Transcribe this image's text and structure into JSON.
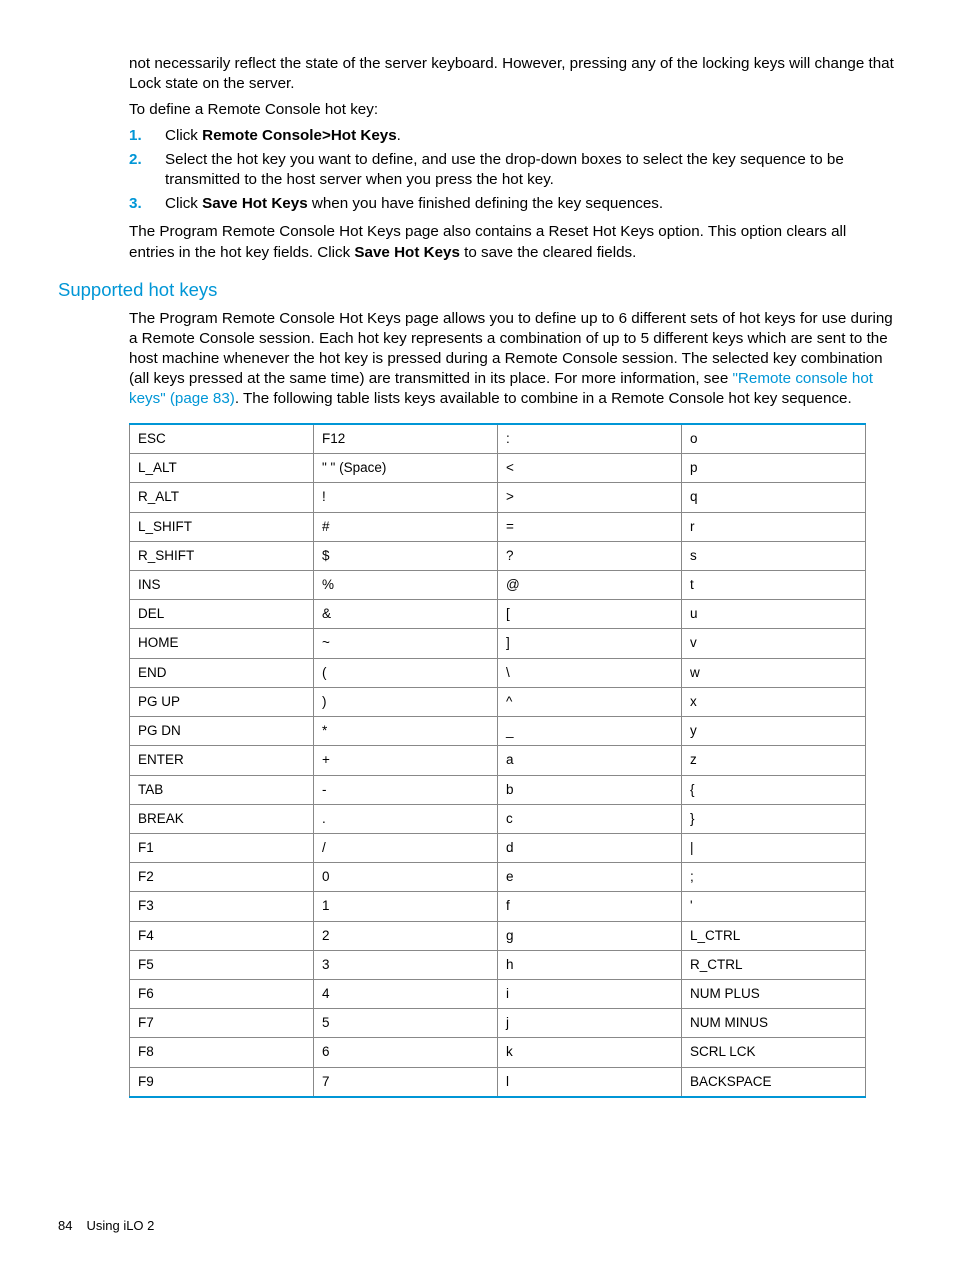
{
  "intro": {
    "p1": "not necessarily reflect the state of the server keyboard. However, pressing any of the locking keys will change that Lock state on the server.",
    "p2": "To define a Remote Console hot key:"
  },
  "steps": {
    "s1": {
      "num": "1.",
      "pre": "Click ",
      "bold": "Remote Console>Hot Keys",
      "post": "."
    },
    "s2": {
      "num": "2.",
      "text": "Select the hot key you want to define, and use the drop-down boxes to select the key sequence to be transmitted to the host server when you press the hot key."
    },
    "s3": {
      "num": "3.",
      "pre": "Click ",
      "bold": "Save Hot Keys",
      "post": " when you have finished defining the key sequences."
    }
  },
  "para_reset": {
    "pre": "The Program Remote Console Hot Keys page also contains a Reset Hot Keys option. This option clears all entries in the hot key fields. Click ",
    "bold": "Save Hot Keys",
    "post": " to save the cleared fields."
  },
  "heading": "Supported hot keys",
  "para_supported": {
    "pre": "The Program Remote Console Hot Keys page allows you to define up to 6 different sets of hot keys for use during a Remote Console session. Each hot key represents a combination of up to 5 different keys which are sent to the host machine whenever the hot key is pressed during a Remote Console session. The selected key combination (all keys pressed at the same time) are transmitted in its place. For more information, see ",
    "link": "\"Remote console hot keys\" (page 83)",
    "post": ". The following table lists keys available to combine in a Remote Console hot key sequence."
  },
  "table": {
    "columns": [
      "col1",
      "col2",
      "col3",
      "col4"
    ],
    "rows": [
      [
        "ESC",
        "F12",
        ":",
        "o"
      ],
      [
        "L_ALT",
        "\" \" (Space)",
        "<",
        "p"
      ],
      [
        "R_ALT",
        "!",
        ">",
        "q"
      ],
      [
        "L_SHIFT",
        "#",
        "=",
        "r"
      ],
      [
        "R_SHIFT",
        "$",
        "?",
        "s"
      ],
      [
        "INS",
        "%",
        "@",
        "t"
      ],
      [
        "DEL",
        "&",
        "[",
        "u"
      ],
      [
        "HOME",
        "~",
        "]",
        "v"
      ],
      [
        "END",
        "(",
        "\\",
        "w"
      ],
      [
        "PG UP",
        ")",
        "^",
        "x"
      ],
      [
        "PG DN",
        "*",
        "_",
        "y"
      ],
      [
        "ENTER",
        "+",
        "a",
        "z"
      ],
      [
        "TAB",
        "-",
        "b",
        "{"
      ],
      [
        "BREAK",
        ".",
        "c",
        "}"
      ],
      [
        "F1",
        "/",
        "d",
        "|"
      ],
      [
        "F2",
        "0",
        "e",
        ";"
      ],
      [
        "F3",
        "1",
        "f",
        "'"
      ],
      [
        "F4",
        "2",
        "g",
        "L_CTRL"
      ],
      [
        "F5",
        "3",
        "h",
        "R_CTRL"
      ],
      [
        "F6",
        "4",
        "i",
        "NUM PLUS"
      ],
      [
        "F7",
        "5",
        "j",
        "NUM MINUS"
      ],
      [
        "F8",
        "6",
        "k",
        "SCRL LCK"
      ],
      [
        "F9",
        "7",
        "l",
        "BACKSPACE"
      ]
    ]
  },
  "footer": {
    "pagenum": "84",
    "chapter": "Using iLO 2"
  },
  "colors": {
    "accent": "#0096d6",
    "text": "#000000",
    "border": "#888888",
    "bg": "#ffffff"
  },
  "typography": {
    "body_fontsize": 15.2,
    "table_fontsize": 13.5,
    "heading_fontsize": 18.5,
    "footer_fontsize": 13
  }
}
